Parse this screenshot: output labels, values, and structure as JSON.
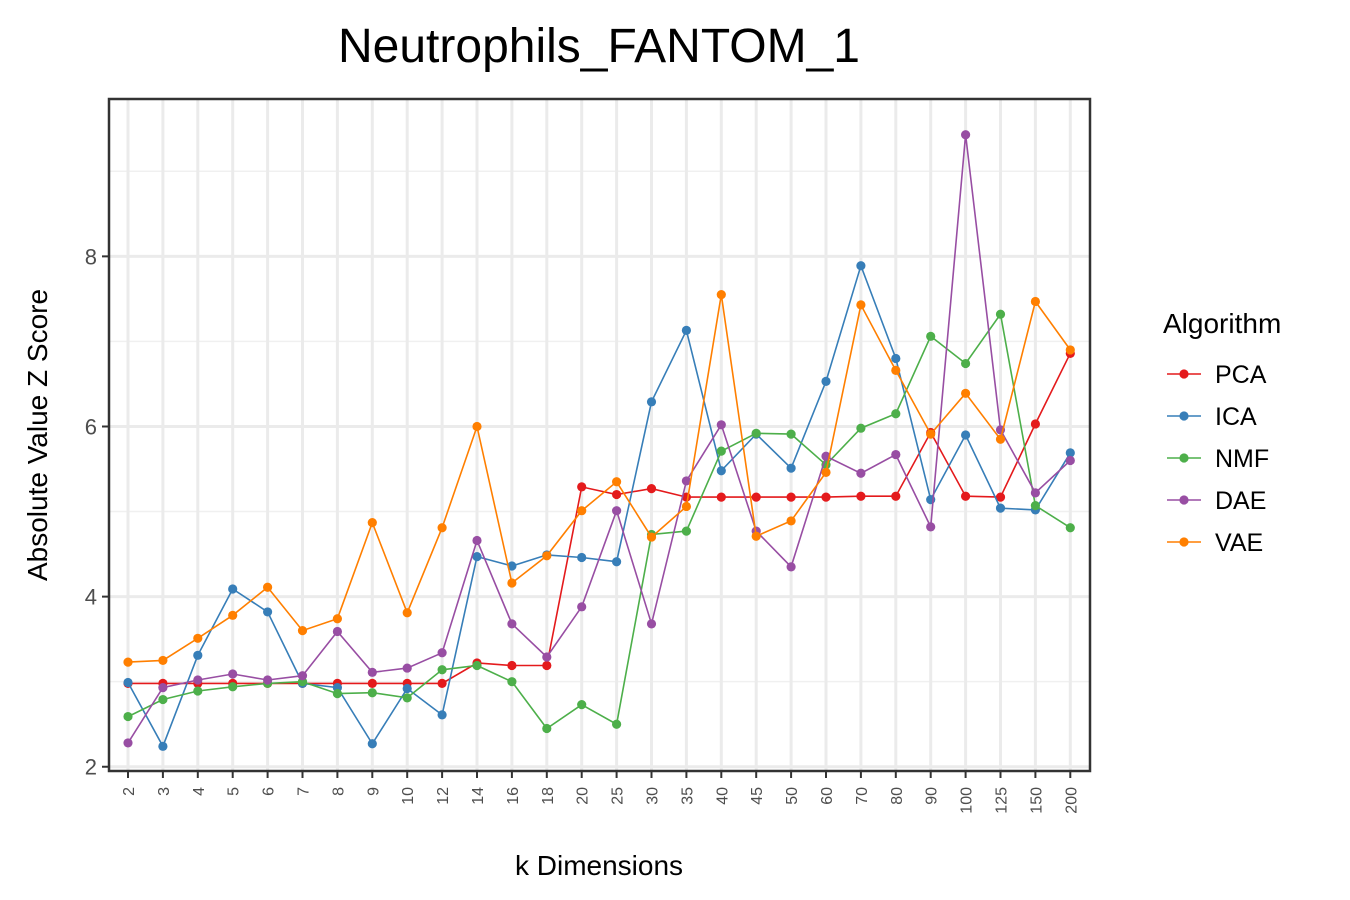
{
  "chart_data": {
    "type": "line",
    "title": "Neutrophils_FANTOM_1",
    "xlabel": "k Dimensions",
    "ylabel": "Absolute Value Z Score",
    "categories": [
      "2",
      "3",
      "4",
      "5",
      "6",
      "7",
      "8",
      "9",
      "10",
      "12",
      "14",
      "16",
      "18",
      "20",
      "25",
      "30",
      "35",
      "40",
      "45",
      "50",
      "60",
      "70",
      "80",
      "90",
      "100",
      "125",
      "150",
      "200"
    ],
    "yticks": [
      "2",
      "4",
      "6",
      "8"
    ],
    "ylim": [
      1.95,
      9.85
    ],
    "grid": true,
    "legend": {
      "title": "Algorithm",
      "position": "right"
    },
    "series": [
      {
        "name": "PCA",
        "color": "#E41A1C",
        "values": [
          2.98,
          2.98,
          2.98,
          2.98,
          2.98,
          2.98,
          2.98,
          2.98,
          2.98,
          2.98,
          3.22,
          3.19,
          3.19,
          5.29,
          5.2,
          5.27,
          5.17,
          5.17,
          5.17,
          5.17,
          5.17,
          5.18,
          5.18,
          5.93,
          5.18,
          5.17,
          6.03,
          6.86
        ]
      },
      {
        "name": "ICA",
        "color": "#377EB8",
        "values": [
          2.99,
          2.24,
          3.31,
          4.09,
          3.82,
          2.98,
          2.93,
          2.27,
          2.92,
          2.61,
          4.47,
          4.36,
          4.49,
          4.46,
          4.41,
          6.29,
          7.13,
          5.48,
          5.91,
          5.51,
          6.53,
          7.89,
          6.8,
          5.14,
          5.9,
          5.04,
          5.02,
          5.69
        ]
      },
      {
        "name": "NMF",
        "color": "#4DAF4A",
        "values": [
          2.59,
          2.79,
          2.89,
          2.94,
          2.98,
          3.0,
          2.86,
          2.87,
          2.81,
          3.14,
          3.19,
          3.0,
          2.45,
          2.73,
          2.5,
          4.73,
          4.77,
          5.71,
          5.92,
          5.91,
          5.55,
          5.98,
          6.15,
          7.06,
          6.74,
          7.32,
          5.07,
          4.81
        ]
      },
      {
        "name": "DAE",
        "color": "#984EA3",
        "values": [
          2.28,
          2.93,
          3.02,
          3.09,
          3.02,
          3.07,
          3.59,
          3.11,
          3.16,
          3.34,
          4.66,
          3.68,
          3.29,
          3.88,
          5.01,
          3.68,
          5.36,
          6.02,
          4.77,
          4.35,
          5.65,
          5.45,
          5.67,
          4.82,
          9.43,
          5.96,
          5.22,
          5.6
        ]
      },
      {
        "name": "VAE",
        "color": "#FF7F00",
        "values": [
          3.23,
          3.25,
          3.51,
          3.78,
          4.11,
          3.6,
          3.74,
          4.87,
          3.81,
          4.81,
          6.0,
          4.16,
          4.48,
          5.01,
          5.35,
          4.7,
          5.06,
          7.55,
          4.71,
          4.89,
          5.46,
          7.43,
          6.66,
          5.91,
          6.39,
          5.85,
          7.47,
          6.9
        ]
      }
    ]
  }
}
